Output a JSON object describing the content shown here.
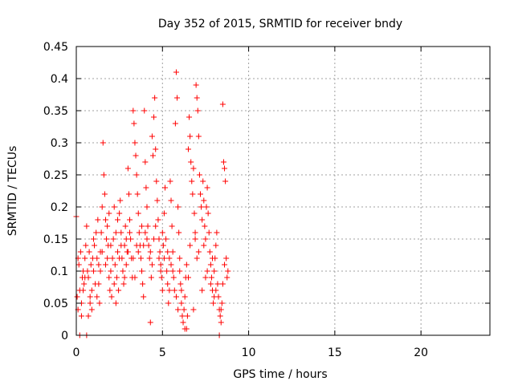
{
  "chart_data": {
    "type": "scatter",
    "title": "Day 352 of 2015, SRMTID for receiver bndy",
    "xlabel": "GPS time / hours",
    "ylabel": "SRMTID / TECUs",
    "xlim": [
      0,
      24
    ],
    "ylim": [
      0,
      0.45
    ],
    "x_ticks": [
      0,
      5,
      10,
      15,
      20
    ],
    "y_ticks": [
      0,
      0.05,
      0.1,
      0.15,
      0.2,
      0.25,
      0.3,
      0.35,
      0.4,
      0.45
    ],
    "x_tick_labels": [
      "0",
      "5",
      "10",
      "15",
      "20"
    ],
    "y_tick_labels": [
      "0",
      "0.05",
      "0.1",
      "0.15",
      "0.2",
      "0.25",
      "0.3",
      "0.35",
      "0.4",
      "0.45"
    ],
    "grid": true,
    "marker": "+",
    "color": "#ff0000",
    "series": [
      {
        "name": "SRMTID",
        "points": [
          [
            0.0,
            0.185
          ],
          [
            0.05,
            0.06
          ],
          [
            0.1,
            0.04
          ],
          [
            0.15,
            0.11
          ],
          [
            0.2,
            0.07
          ],
          [
            0.25,
            0.13
          ],
          [
            0.3,
            0.05
          ],
          [
            0.35,
            0.09
          ],
          [
            0.4,
            0.1
          ],
          [
            0.45,
            0.08
          ],
          [
            0.5,
            0.12
          ],
          [
            0.55,
            0.14
          ],
          [
            0.6,
            0.17
          ],
          [
            0.65,
            0.1
          ],
          [
            0.7,
            0.09
          ],
          [
            0.75,
            0.13
          ],
          [
            0.8,
            0.06
          ],
          [
            0.85,
            0.11
          ],
          [
            0.9,
            0.07
          ],
          [
            0.95,
            0.12
          ],
          [
            1.0,
            0.1
          ],
          [
            1.05,
            0.14
          ],
          [
            1.1,
            0.08
          ],
          [
            1.15,
            0.16
          ],
          [
            1.2,
            0.12
          ],
          [
            1.25,
            0.18
          ],
          [
            1.3,
            0.11
          ],
          [
            1.35,
            0.05
          ],
          [
            1.4,
            0.13
          ],
          [
            1.45,
            0.16
          ],
          [
            1.5,
            0.2
          ],
          [
            1.55,
            0.3
          ],
          [
            1.6,
            0.25
          ],
          [
            1.65,
            0.22
          ],
          [
            1.7,
            0.18
          ],
          [
            1.75,
            0.15
          ],
          [
            1.8,
            0.12
          ],
          [
            1.85,
            0.14
          ],
          [
            1.9,
            0.09
          ],
          [
            1.95,
            0.07
          ],
          [
            2.0,
            0.1
          ],
          [
            2.05,
            0.06
          ],
          [
            2.1,
            0.12
          ],
          [
            2.15,
            0.15
          ],
          [
            2.2,
            0.08
          ],
          [
            2.25,
            0.11
          ],
          [
            2.3,
            0.05
          ],
          [
            2.35,
            0.09
          ],
          [
            2.4,
            0.13
          ],
          [
            2.45,
            0.07
          ],
          [
            2.5,
            0.19
          ],
          [
            2.55,
            0.21
          ],
          [
            2.6,
            0.16
          ],
          [
            2.65,
            0.12
          ],
          [
            2.7,
            0.1
          ],
          [
            2.75,
            0.08
          ],
          [
            2.8,
            0.14
          ],
          [
            2.85,
            0.17
          ],
          [
            2.9,
            0.11
          ],
          [
            2.95,
            0.13
          ],
          [
            3.0,
            0.26
          ],
          [
            3.05,
            0.22
          ],
          [
            3.1,
            0.18
          ],
          [
            3.15,
            0.15
          ],
          [
            3.2,
            0.12
          ],
          [
            3.25,
            0.09
          ],
          [
            3.3,
            0.35
          ],
          [
            3.35,
            0.33
          ],
          [
            3.4,
            0.3
          ],
          [
            3.45,
            0.28
          ],
          [
            3.5,
            0.25
          ],
          [
            3.55,
            0.22
          ],
          [
            3.6,
            0.19
          ],
          [
            3.65,
            0.16
          ],
          [
            3.7,
            0.14
          ],
          [
            3.75,
            0.12
          ],
          [
            3.8,
            0.1
          ],
          [
            3.85,
            0.08
          ],
          [
            3.9,
            0.06
          ],
          [
            3.95,
            0.35
          ],
          [
            4.0,
            0.27
          ],
          [
            4.05,
            0.23
          ],
          [
            4.1,
            0.2
          ],
          [
            4.15,
            0.17
          ],
          [
            4.2,
            0.14
          ],
          [
            4.25,
            0.12
          ],
          [
            4.3,
            0.02
          ],
          [
            4.35,
            0.09
          ],
          [
            4.4,
            0.31
          ],
          [
            4.45,
            0.28
          ],
          [
            4.5,
            0.34
          ],
          [
            4.55,
            0.37
          ],
          [
            4.6,
            0.29
          ],
          [
            4.65,
            0.24
          ],
          [
            4.7,
            0.21
          ],
          [
            4.75,
            0.18
          ],
          [
            4.8,
            0.15
          ],
          [
            4.85,
            0.13
          ],
          [
            4.9,
            0.11
          ],
          [
            4.95,
            0.09
          ],
          [
            5.0,
            0.07
          ],
          [
            5.05,
            0.14
          ],
          [
            5.1,
            0.19
          ],
          [
            5.15,
            0.23
          ],
          [
            5.2,
            0.15
          ],
          [
            5.25,
            0.1
          ],
          [
            5.3,
            0.08
          ],
          [
            5.35,
            0.05
          ],
          [
            5.4,
            0.12
          ],
          [
            5.45,
            0.24
          ],
          [
            5.5,
            0.21
          ],
          [
            5.55,
            0.17
          ],
          [
            5.6,
            0.13
          ],
          [
            5.65,
            0.09
          ],
          [
            5.7,
            0.07
          ],
          [
            5.75,
            0.33
          ],
          [
            5.8,
            0.41
          ],
          [
            5.85,
            0.37
          ],
          [
            5.9,
            0.2
          ],
          [
            5.95,
            0.16
          ],
          [
            6.0,
            0.12
          ],
          [
            6.05,
            0.08
          ],
          [
            6.1,
            0.05
          ],
          [
            6.15,
            0.03
          ],
          [
            6.2,
            0.02
          ],
          [
            6.25,
            0.04
          ],
          [
            6.3,
            0.06
          ],
          [
            6.35,
            0.09
          ],
          [
            6.4,
            0.01
          ],
          [
            6.45,
            0.03
          ],
          [
            6.5,
            0.29
          ],
          [
            6.55,
            0.34
          ],
          [
            6.6,
            0.31
          ],
          [
            6.65,
            0.27
          ],
          [
            6.7,
            0.24
          ],
          [
            6.75,
            0.22
          ],
          [
            6.8,
            0.26
          ],
          [
            6.85,
            0.19
          ],
          [
            6.9,
            0.16
          ],
          [
            6.95,
            0.39
          ],
          [
            7.0,
            0.37
          ],
          [
            7.05,
            0.35
          ],
          [
            7.1,
            0.31
          ],
          [
            7.15,
            0.25
          ],
          [
            7.2,
            0.22
          ],
          [
            7.25,
            0.2
          ],
          [
            7.3,
            0.18
          ],
          [
            7.35,
            0.24
          ],
          [
            7.4,
            0.21
          ],
          [
            7.45,
            0.17
          ],
          [
            7.5,
            0.15
          ],
          [
            7.55,
            0.2
          ],
          [
            7.6,
            0.23
          ],
          [
            7.65,
            0.19
          ],
          [
            7.7,
            0.16
          ],
          [
            7.75,
            0.13
          ],
          [
            7.8,
            0.11
          ],
          [
            7.85,
            0.09
          ],
          [
            7.9,
            0.07
          ],
          [
            7.95,
            0.05
          ],
          [
            8.0,
            0.1
          ],
          [
            8.05,
            0.12
          ],
          [
            8.1,
            0.14
          ],
          [
            8.15,
            0.16
          ],
          [
            8.2,
            0.08
          ],
          [
            8.25,
            0.06
          ],
          [
            8.3,
            0.04
          ],
          [
            8.35,
            0.03
          ],
          [
            8.4,
            0.02
          ],
          [
            8.45,
            0.05
          ],
          [
            8.5,
            0.36
          ],
          [
            8.55,
            0.27
          ],
          [
            8.6,
            0.26
          ],
          [
            8.65,
            0.24
          ],
          [
            8.7,
            0.12
          ],
          [
            8.75,
            0.09
          ],
          [
            8.8,
            0.1
          ],
          [
            0.1,
            0.12
          ],
          [
            0.3,
            0.03
          ],
          [
            0.6,
            0.0
          ],
          [
            0.9,
            0.04
          ],
          [
            1.2,
            0.06
          ],
          [
            1.8,
            0.17
          ],
          [
            2.2,
            0.2
          ],
          [
            2.6,
            0.14
          ],
          [
            3.1,
            0.16
          ],
          [
            3.6,
            0.13
          ],
          [
            4.1,
            0.15
          ],
          [
            4.6,
            0.17
          ],
          [
            5.1,
            0.12
          ],
          [
            5.6,
            0.1
          ],
          [
            6.1,
            0.07
          ],
          [
            6.6,
            0.14
          ],
          [
            7.1,
            0.13
          ],
          [
            7.6,
            0.1
          ],
          [
            8.1,
            0.07
          ],
          [
            8.6,
            0.11
          ],
          [
            0.5,
            0.09
          ],
          [
            1.0,
            0.15
          ],
          [
            1.5,
            0.13
          ],
          [
            2.0,
            0.14
          ],
          [
            2.5,
            0.12
          ],
          [
            3.0,
            0.13
          ],
          [
            3.5,
            0.14
          ],
          [
            4.0,
            0.16
          ],
          [
            4.5,
            0.15
          ],
          [
            5.0,
            0.16
          ],
          [
            5.5,
            0.11
          ],
          [
            6.0,
            0.1
          ],
          [
            6.5,
            0.09
          ],
          [
            7.0,
            0.12
          ],
          [
            7.5,
            0.09
          ],
          [
            8.0,
            0.06
          ],
          [
            8.5,
            0.08
          ],
          [
            0.2,
            0.0
          ],
          [
            0.7,
            0.03
          ],
          [
            1.3,
            0.08
          ],
          [
            1.7,
            0.11
          ],
          [
            2.3,
            0.16
          ],
          [
            2.8,
            0.09
          ],
          [
            3.3,
            0.12
          ],
          [
            3.8,
            0.17
          ],
          [
            4.3,
            0.13
          ],
          [
            4.8,
            0.12
          ],
          [
            5.3,
            0.13
          ],
          [
            5.8,
            0.06
          ],
          [
            6.3,
            0.01
          ],
          [
            6.8,
            0.04
          ],
          [
            7.3,
            0.07
          ],
          [
            7.8,
            0.08
          ],
          [
            8.3,
            0.0
          ],
          [
            0.4,
            0.07
          ],
          [
            0.8,
            0.05
          ],
          [
            1.4,
            0.1
          ],
          [
            1.9,
            0.19
          ],
          [
            2.4,
            0.18
          ],
          [
            2.9,
            0.15
          ],
          [
            3.4,
            0.09
          ],
          [
            3.9,
            0.14
          ],
          [
            4.4,
            0.11
          ],
          [
            4.9,
            0.1
          ],
          [
            5.4,
            0.07
          ],
          [
            5.9,
            0.04
          ],
          [
            6.4,
            0.11
          ],
          [
            6.9,
            0.15
          ],
          [
            7.4,
            0.14
          ],
          [
            7.9,
            0.12
          ],
          [
            8.4,
            0.04
          ]
        ]
      }
    ]
  }
}
